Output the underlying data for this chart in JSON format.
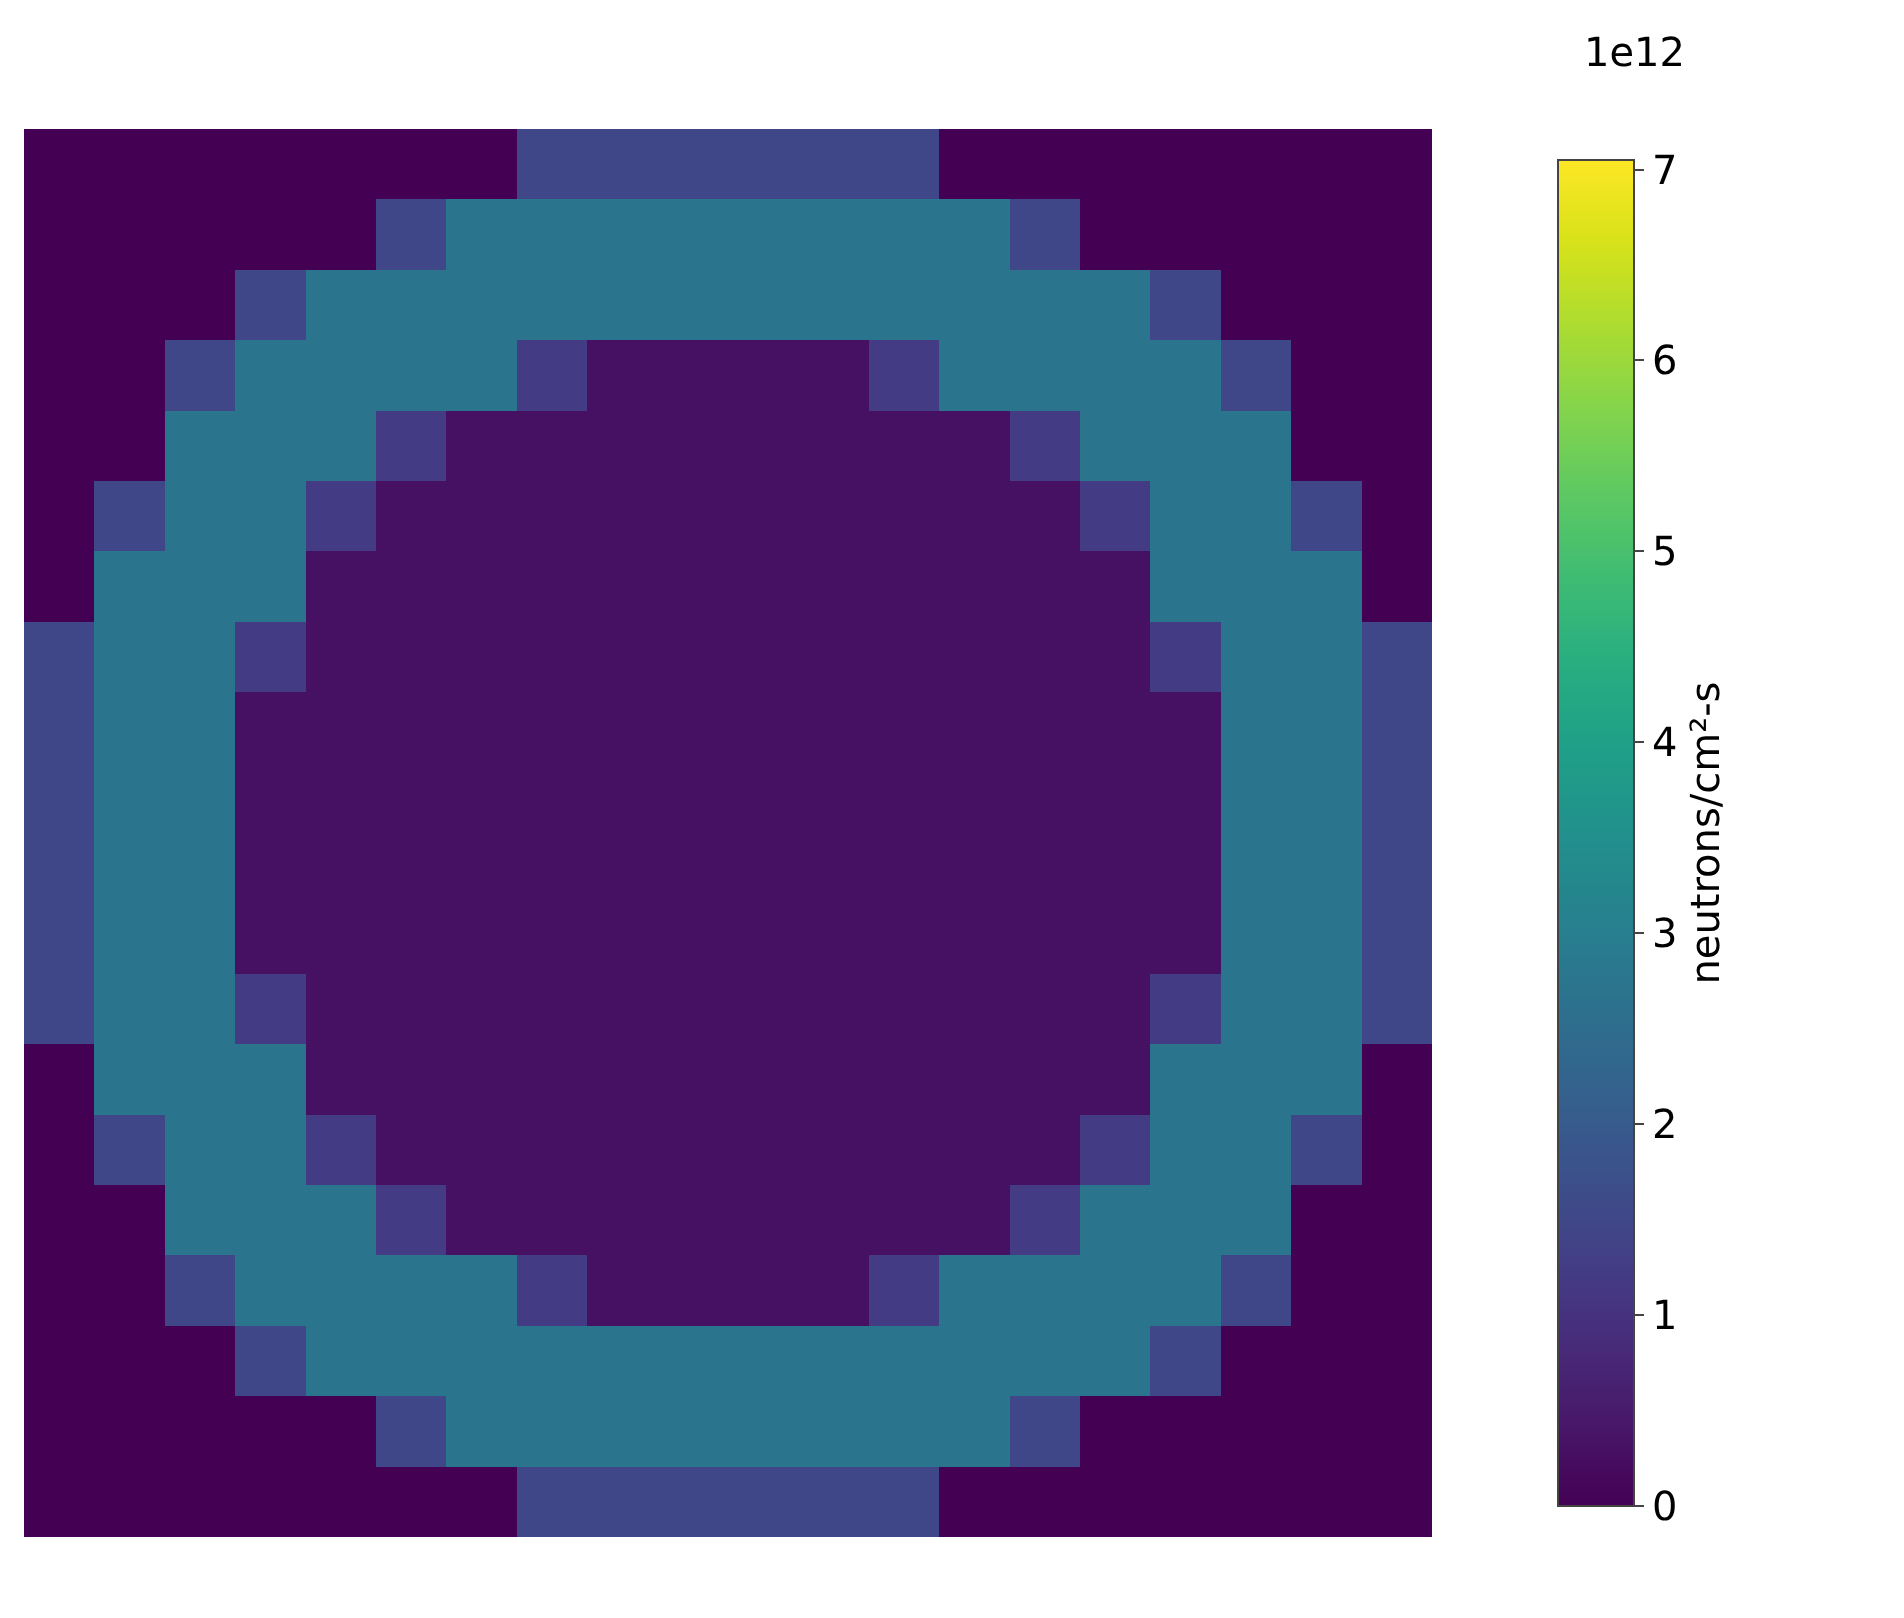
{
  "chart_data": {
    "type": "heatmap",
    "categories": [
      null,
      null,
      null,
      null,
      null,
      null,
      null,
      null,
      null,
      null,
      null,
      null,
      null,
      null,
      null,
      null,
      null,
      null,
      null,
      null
    ],
    "y_categories": [
      null,
      null,
      null,
      null,
      null,
      null,
      null,
      null,
      null,
      null,
      null,
      null,
      null,
      null,
      null,
      null,
      null,
      null,
      null,
      null
    ],
    "cells": [
      [
        0,
        0,
        0,
        0,
        0,
        0,
        0,
        1.5,
        1.5,
        1.5,
        1.5,
        1.5,
        1.5,
        0,
        0,
        0,
        0,
        0,
        0,
        0
      ],
      [
        0,
        0,
        0,
        0,
        0,
        1.5,
        2.7,
        2.7,
        2.7,
        2.7,
        2.7,
        2.7,
        2.7,
        2.7,
        1.5,
        0,
        0,
        0,
        0,
        0
      ],
      [
        0,
        0,
        0,
        1.5,
        2.7,
        2.7,
        2.7,
        2.7,
        2.7,
        2.7,
        2.7,
        2.7,
        2.7,
        2.7,
        2.7,
        2.7,
        1.5,
        0,
        0,
        0
      ],
      [
        0,
        0,
        1.5,
        2.7,
        2.7,
        2.7,
        2.7,
        1.2,
        0.3,
        0.3,
        0.3,
        0.3,
        1.2,
        2.7,
        2.7,
        2.7,
        2.7,
        1.5,
        0,
        0
      ],
      [
        0,
        0,
        2.7,
        2.7,
        2.7,
        1.2,
        0.3,
        0.3,
        0.3,
        0.3,
        0.3,
        0.3,
        0.3,
        0.3,
        1.2,
        2.7,
        2.7,
        2.7,
        0,
        0
      ],
      [
        0,
        1.5,
        2.7,
        2.7,
        1.2,
        0.3,
        0.3,
        0.3,
        0.3,
        0.3,
        0.3,
        0.3,
        0.3,
        0.3,
        0.3,
        1.2,
        2.7,
        2.7,
        1.5,
        0
      ],
      [
        0,
        2.7,
        2.7,
        2.7,
        0.3,
        0.3,
        0.3,
        0.3,
        0.3,
        0.3,
        0.3,
        0.3,
        0.3,
        0.3,
        0.3,
        0.3,
        2.7,
        2.7,
        2.7,
        0
      ],
      [
        1.5,
        2.7,
        2.7,
        1.2,
        0.3,
        0.3,
        0.3,
        0.3,
        0.3,
        0.3,
        0.3,
        0.3,
        0.3,
        0.3,
        0.3,
        0.3,
        1.2,
        2.7,
        2.7,
        1.5
      ],
      [
        1.5,
        2.7,
        2.7,
        0.3,
        0.3,
        0.3,
        0.3,
        0.3,
        0.3,
        0.3,
        0.3,
        0.3,
        0.3,
        0.3,
        0.3,
        0.3,
        0.3,
        2.7,
        2.7,
        1.5
      ],
      [
        1.5,
        2.7,
        2.7,
        0.3,
        0.3,
        0.3,
        0.3,
        0.3,
        0.3,
        0.3,
        0.3,
        0.3,
        0.3,
        0.3,
        0.3,
        0.3,
        0.3,
        2.7,
        2.7,
        1.5
      ],
      [
        1.5,
        2.7,
        2.7,
        0.3,
        0.3,
        0.3,
        0.3,
        0.3,
        0.3,
        0.3,
        0.3,
        0.3,
        0.3,
        0.3,
        0.3,
        0.3,
        0.3,
        2.7,
        2.7,
        1.5
      ],
      [
        1.5,
        2.7,
        2.7,
        0.3,
        0.3,
        0.3,
        0.3,
        0.3,
        0.3,
        0.3,
        0.3,
        0.3,
        0.3,
        0.3,
        0.3,
        0.3,
        0.3,
        2.7,
        2.7,
        1.5
      ],
      [
        1.5,
        2.7,
        2.7,
        1.2,
        0.3,
        0.3,
        0.3,
        0.3,
        0.3,
        0.3,
        0.3,
        0.3,
        0.3,
        0.3,
        0.3,
        0.3,
        1.2,
        2.7,
        2.7,
        1.5
      ],
      [
        0,
        2.7,
        2.7,
        2.7,
        0.3,
        0.3,
        0.3,
        0.3,
        0.3,
        0.3,
        0.3,
        0.3,
        0.3,
        0.3,
        0.3,
        0.3,
        2.7,
        2.7,
        2.7,
        0
      ],
      [
        0,
        1.5,
        2.7,
        2.7,
        1.2,
        0.3,
        0.3,
        0.3,
        0.3,
        0.3,
        0.3,
        0.3,
        0.3,
        0.3,
        0.3,
        1.2,
        2.7,
        2.7,
        1.5,
        0
      ],
      [
        0,
        0,
        2.7,
        2.7,
        2.7,
        1.2,
        0.3,
        0.3,
        0.3,
        0.3,
        0.3,
        0.3,
        0.3,
        0.3,
        1.2,
        2.7,
        2.7,
        2.7,
        0,
        0
      ],
      [
        0,
        0,
        1.5,
        2.7,
        2.7,
        2.7,
        2.7,
        1.2,
        0.3,
        0.3,
        0.3,
        0.3,
        1.2,
        2.7,
        2.7,
        2.7,
        2.7,
        1.5,
        0,
        0
      ],
      [
        0,
        0,
        0,
        1.5,
        2.7,
        2.7,
        2.7,
        2.7,
        2.7,
        2.7,
        2.7,
        2.7,
        2.7,
        2.7,
        2.7,
        2.7,
        1.5,
        0,
        0,
        0
      ],
      [
        0,
        0,
        0,
        0,
        0,
        1.5,
        2.7,
        2.7,
        2.7,
        2.7,
        2.7,
        2.7,
        2.7,
        2.7,
        1.5,
        0,
        0,
        0,
        0,
        0
      ],
      [
        0,
        0,
        0,
        0,
        0,
        0,
        0,
        1.5,
        1.5,
        1.5,
        1.5,
        1.5,
        1.5,
        0,
        0,
        0,
        0,
        0,
        0,
        0
      ]
    ],
    "clim": [
      0,
      7.05
    ],
    "cticks": [
      0,
      1,
      2,
      3,
      4,
      5,
      6,
      7
    ],
    "clabel": "neutrons/cm²-s",
    "annotations": [
      "1e12"
    ]
  }
}
